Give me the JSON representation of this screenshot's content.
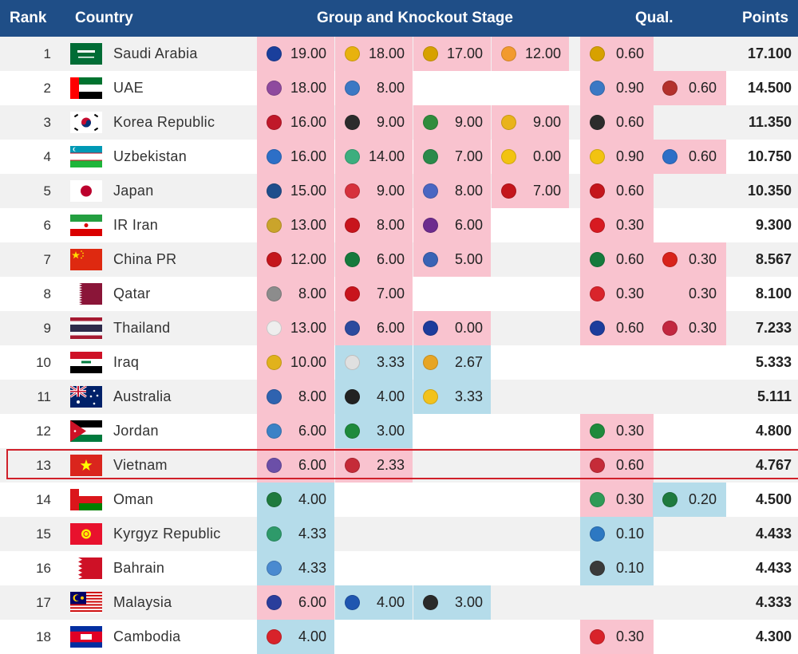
{
  "header": {
    "rank": "Rank",
    "country": "Country",
    "stage": "Group and Knockout Stage",
    "qual": "Qual.",
    "points": "Points"
  },
  "colors": {
    "header": "#1f4e87",
    "pink": "#f9c3cf",
    "blue": "#b5dcea",
    "highlight": "#d0202a"
  },
  "rows": [
    {
      "rank": "1",
      "country": "Saudi Arabia",
      "flag": "saudi-arabia",
      "stage": [
        {
          "v": "19.00",
          "c": "pink",
          "l": "#1a3f9c"
        },
        {
          "v": "18.00",
          "c": "pink",
          "l": "#e8b20e"
        },
        {
          "v": "17.00",
          "c": "pink",
          "l": "#d7a100"
        },
        {
          "v": "12.00",
          "c": "pink",
          "l": "#f29a2e"
        }
      ],
      "qual": [
        {
          "v": "0.60",
          "c": "pink",
          "l": "#d7a100"
        },
        {
          "v": "",
          "c": "none",
          "l": ""
        }
      ],
      "points": "17.100"
    },
    {
      "rank": "2",
      "country": "UAE",
      "flag": "uae",
      "stage": [
        {
          "v": "18.00",
          "c": "pink",
          "l": "#8e4a9e"
        },
        {
          "v": "8.00",
          "c": "pink",
          "l": "#3b78c4"
        },
        {
          "v": "",
          "c": "none",
          "l": ""
        },
        {
          "v": "",
          "c": "none",
          "l": ""
        }
      ],
      "qual": [
        {
          "v": "0.90",
          "c": "pink",
          "l": "#3b78c4"
        },
        {
          "v": "0.60",
          "c": "pink",
          "l": "#b3312c"
        }
      ],
      "points": "14.500"
    },
    {
      "rank": "3",
      "country": "Korea Republic",
      "flag": "korea",
      "stage": [
        {
          "v": "16.00",
          "c": "pink",
          "l": "#c0182a"
        },
        {
          "v": "9.00",
          "c": "pink",
          "l": "#2c2c2c"
        },
        {
          "v": "9.00",
          "c": "pink",
          "l": "#2f8c3c"
        },
        {
          "v": "9.00",
          "c": "pink",
          "l": "#e9b31b"
        }
      ],
      "qual": [
        {
          "v": "0.60",
          "c": "pink",
          "l": "#2c2c2c"
        },
        {
          "v": "",
          "c": "none",
          "l": ""
        }
      ],
      "points": "11.350"
    },
    {
      "rank": "4",
      "country": "Uzbekistan",
      "flag": "uzbekistan",
      "stage": [
        {
          "v": "16.00",
          "c": "pink",
          "l": "#2d6fc7"
        },
        {
          "v": "14.00",
          "c": "pink",
          "l": "#3cae7e"
        },
        {
          "v": "7.00",
          "c": "pink",
          "l": "#2a8a4a"
        },
        {
          "v": "0.00",
          "c": "pink",
          "l": "#f2c311"
        }
      ],
      "qual": [
        {
          "v": "0.90",
          "c": "pink",
          "l": "#f2c311"
        },
        {
          "v": "0.60",
          "c": "pink",
          "l": "#2d6fc7"
        }
      ],
      "points": "10.750"
    },
    {
      "rank": "5",
      "country": "Japan",
      "flag": "japan",
      "stage": [
        {
          "v": "15.00",
          "c": "pink",
          "l": "#1f4e8c"
        },
        {
          "v": "9.00",
          "c": "pink",
          "l": "#d6323d"
        },
        {
          "v": "8.00",
          "c": "pink",
          "l": "#4a66c2"
        },
        {
          "v": "7.00",
          "c": "pink",
          "l": "#c4161c"
        }
      ],
      "qual": [
        {
          "v": "0.60",
          "c": "pink",
          "l": "#c4161c"
        },
        {
          "v": "",
          "c": "none",
          "l": ""
        }
      ],
      "points": "10.350"
    },
    {
      "rank": "6",
      "country": "IR Iran",
      "flag": "iran",
      "stage": [
        {
          "v": "13.00",
          "c": "pink",
          "l": "#caa42b"
        },
        {
          "v": "8.00",
          "c": "pink",
          "l": "#c8141c"
        },
        {
          "v": "6.00",
          "c": "pink",
          "l": "#6d2c8e"
        },
        {
          "v": "",
          "c": "none",
          "l": ""
        }
      ],
      "qual": [
        {
          "v": "0.30",
          "c": "pink",
          "l": "#d71a21"
        },
        {
          "v": "",
          "c": "none",
          "l": ""
        }
      ],
      "points": "9.300"
    },
    {
      "rank": "7",
      "country": "China PR",
      "flag": "china",
      "stage": [
        {
          "v": "12.00",
          "c": "pink",
          "l": "#c4161c"
        },
        {
          "v": "6.00",
          "c": "pink",
          "l": "#157a3c"
        },
        {
          "v": "5.00",
          "c": "pink",
          "l": "#3963b5"
        },
        {
          "v": "",
          "c": "none",
          "l": ""
        }
      ],
      "qual": [
        {
          "v": "0.60",
          "c": "pink",
          "l": "#157a3c"
        },
        {
          "v": "0.30",
          "c": "pink",
          "l": "#d8231b"
        }
      ],
      "points": "8.567"
    },
    {
      "rank": "8",
      "country": "Qatar",
      "flag": "qatar",
      "stage": [
        {
          "v": "8.00",
          "c": "pink",
          "l": "#8c8c8c"
        },
        {
          "v": "7.00",
          "c": "pink",
          "l": "#c8141c"
        },
        {
          "v": "",
          "c": "none",
          "l": ""
        },
        {
          "v": "",
          "c": "none",
          "l": ""
        }
      ],
      "qual": [
        {
          "v": "0.30",
          "c": "pink",
          "l": "#d9242b"
        },
        {
          "v": "0.30",
          "c": "pink",
          "l": ""
        }
      ],
      "points": "8.100"
    },
    {
      "rank": "9",
      "country": "Thailand",
      "flag": "thailand",
      "stage": [
        {
          "v": "13.00",
          "c": "pink",
          "l": "#eeeeee"
        },
        {
          "v": "6.00",
          "c": "pink",
          "l": "#2b4a9e"
        },
        {
          "v": "0.00",
          "c": "pink",
          "l": "#1c3c9c"
        },
        {
          "v": "",
          "c": "none",
          "l": ""
        }
      ],
      "qual": [
        {
          "v": "0.60",
          "c": "pink",
          "l": "#1c3c9c"
        },
        {
          "v": "0.30",
          "c": "pink",
          "l": "#c2273f"
        }
      ],
      "points": "7.233"
    },
    {
      "rank": "10",
      "country": "Iraq",
      "flag": "iraq",
      "stage": [
        {
          "v": "10.00",
          "c": "pink",
          "l": "#e1b21c"
        },
        {
          "v": "3.33",
          "c": "blue",
          "l": "#e0e0e0"
        },
        {
          "v": "2.67",
          "c": "blue",
          "l": "#e7a524"
        },
        {
          "v": "",
          "c": "none",
          "l": ""
        }
      ],
      "qual": [
        {
          "v": "",
          "c": "none",
          "l": ""
        },
        {
          "v": "",
          "c": "none",
          "l": ""
        }
      ],
      "points": "5.333"
    },
    {
      "rank": "11",
      "country": "Australia",
      "flag": "australia",
      "stage": [
        {
          "v": "8.00",
          "c": "pink",
          "l": "#2f63b0"
        },
        {
          "v": "4.00",
          "c": "blue",
          "l": "#222222"
        },
        {
          "v": "3.33",
          "c": "blue",
          "l": "#f2c21b"
        },
        {
          "v": "",
          "c": "none",
          "l": ""
        }
      ],
      "qual": [
        {
          "v": "",
          "c": "none",
          "l": ""
        },
        {
          "v": "",
          "c": "none",
          "l": ""
        }
      ],
      "points": "5.111"
    },
    {
      "rank": "12",
      "country": "Jordan",
      "flag": "jordan",
      "stage": [
        {
          "v": "6.00",
          "c": "pink",
          "l": "#3b82c6"
        },
        {
          "v": "3.00",
          "c": "blue",
          "l": "#1e8a3c"
        },
        {
          "v": "",
          "c": "none",
          "l": ""
        },
        {
          "v": "",
          "c": "none",
          "l": ""
        }
      ],
      "qual": [
        {
          "v": "0.30",
          "c": "pink",
          "l": "#1e8a3c"
        },
        {
          "v": "",
          "c": "none",
          "l": ""
        }
      ],
      "points": "4.800"
    },
    {
      "rank": "13",
      "country": "Vietnam",
      "flag": "vietnam",
      "stage": [
        {
          "v": "6.00",
          "c": "pink",
          "l": "#6b4fa8"
        },
        {
          "v": "2.33",
          "c": "pink",
          "l": "#c52b38"
        },
        {
          "v": "",
          "c": "none",
          "l": ""
        },
        {
          "v": "",
          "c": "none",
          "l": ""
        }
      ],
      "qual": [
        {
          "v": "0.60",
          "c": "pink",
          "l": "#c52b38"
        },
        {
          "v": "",
          "c": "none",
          "l": ""
        }
      ],
      "points": "4.767"
    },
    {
      "rank": "14",
      "country": "Oman",
      "flag": "oman",
      "stage": [
        {
          "v": "4.00",
          "c": "blue",
          "l": "#1f7a3e"
        },
        {
          "v": "",
          "c": "none",
          "l": ""
        },
        {
          "v": "",
          "c": "none",
          "l": ""
        },
        {
          "v": "",
          "c": "none",
          "l": ""
        }
      ],
      "qual": [
        {
          "v": "0.30",
          "c": "pink",
          "l": "#2e9a56"
        },
        {
          "v": "0.20",
          "c": "blue",
          "l": "#1f7a3e"
        }
      ],
      "points": "4.500"
    },
    {
      "rank": "15",
      "country": "Kyrgyz Republic",
      "flag": "kyrgyz",
      "stage": [
        {
          "v": "4.33",
          "c": "blue",
          "l": "#2e9a6a"
        },
        {
          "v": "",
          "c": "none",
          "l": ""
        },
        {
          "v": "",
          "c": "none",
          "l": ""
        },
        {
          "v": "",
          "c": "none",
          "l": ""
        }
      ],
      "qual": [
        {
          "v": "0.10",
          "c": "blue",
          "l": "#2d78c2"
        },
        {
          "v": "",
          "c": "none",
          "l": ""
        }
      ],
      "points": "4.433"
    },
    {
      "rank": "16",
      "country": "Bahrain",
      "flag": "bahrain",
      "stage": [
        {
          "v": "4.33",
          "c": "blue",
          "l": "#4a8ad0"
        },
        {
          "v": "",
          "c": "none",
          "l": ""
        },
        {
          "v": "",
          "c": "none",
          "l": ""
        },
        {
          "v": "",
          "c": "none",
          "l": ""
        }
      ],
      "qual": [
        {
          "v": "0.10",
          "c": "blue",
          "l": "#3a3a3a"
        },
        {
          "v": "",
          "c": "none",
          "l": ""
        }
      ],
      "points": "4.433"
    },
    {
      "rank": "17",
      "country": "Malaysia",
      "flag": "malaysia",
      "stage": [
        {
          "v": "6.00",
          "c": "pink",
          "l": "#2a3e9c"
        },
        {
          "v": "4.00",
          "c": "blue",
          "l": "#1f56b0"
        },
        {
          "v": "3.00",
          "c": "blue",
          "l": "#2a2a2a"
        },
        {
          "v": "",
          "c": "none",
          "l": ""
        }
      ],
      "qual": [
        {
          "v": "",
          "c": "none",
          "l": ""
        },
        {
          "v": "",
          "c": "none",
          "l": ""
        }
      ],
      "points": "4.333"
    },
    {
      "rank": "18",
      "country": "Cambodia",
      "flag": "cambodia",
      "stage": [
        {
          "v": "4.00",
          "c": "blue",
          "l": "#d8232a"
        },
        {
          "v": "",
          "c": "none",
          "l": ""
        },
        {
          "v": "",
          "c": "none",
          "l": ""
        },
        {
          "v": "",
          "c": "none",
          "l": ""
        }
      ],
      "qual": [
        {
          "v": "0.30",
          "c": "pink",
          "l": "#d8232a"
        },
        {
          "v": "",
          "c": "none",
          "l": ""
        }
      ],
      "points": "4.300"
    }
  ],
  "highlighted_rank": "13"
}
